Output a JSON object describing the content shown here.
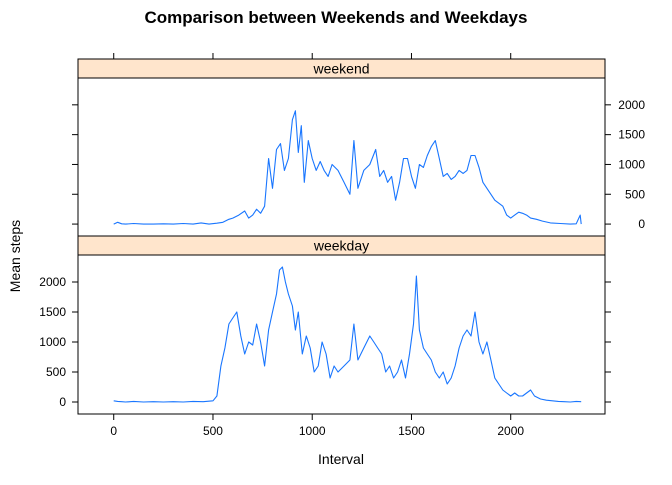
{
  "chart_data": {
    "type": "line",
    "title": "Comparison between Weekends and Weekdays",
    "xlabel": "Interval",
    "ylabel": "Mean steps",
    "xlim": [
      -180,
      2475
    ],
    "ylim": [
      -200,
      2450
    ],
    "x_ticks": [
      0,
      500,
      1000,
      1500,
      2000
    ],
    "y_ticks": [
      0,
      500,
      1000,
      1500,
      2000
    ],
    "panels": [
      {
        "name": "weekend",
        "strip_label": "weekend",
        "y_axis_side": "right",
        "points": [
          [
            0,
            0
          ],
          [
            20,
            30
          ],
          [
            40,
            5
          ],
          [
            60,
            0
          ],
          [
            100,
            10
          ],
          [
            150,
            0
          ],
          [
            200,
            0
          ],
          [
            250,
            5
          ],
          [
            300,
            0
          ],
          [
            350,
            10
          ],
          [
            400,
            0
          ],
          [
            440,
            20
          ],
          [
            480,
            0
          ],
          [
            520,
            15
          ],
          [
            550,
            30
          ],
          [
            580,
            80
          ],
          [
            600,
            100
          ],
          [
            630,
            150
          ],
          [
            660,
            220
          ],
          [
            680,
            100
          ],
          [
            700,
            150
          ],
          [
            720,
            250
          ],
          [
            740,
            180
          ],
          [
            760,
            300
          ],
          [
            780,
            1100
          ],
          [
            800,
            600
          ],
          [
            820,
            1250
          ],
          [
            840,
            1350
          ],
          [
            860,
            900
          ],
          [
            880,
            1100
          ],
          [
            900,
            1750
          ],
          [
            915,
            1900
          ],
          [
            930,
            1200
          ],
          [
            945,
            1650
          ],
          [
            960,
            700
          ],
          [
            980,
            1400
          ],
          [
            1000,
            1100
          ],
          [
            1020,
            900
          ],
          [
            1040,
            1050
          ],
          [
            1060,
            900
          ],
          [
            1080,
            800
          ],
          [
            1100,
            1000
          ],
          [
            1130,
            900
          ],
          [
            1160,
            700
          ],
          [
            1190,
            500
          ],
          [
            1210,
            1400
          ],
          [
            1230,
            600
          ],
          [
            1260,
            900
          ],
          [
            1290,
            1000
          ],
          [
            1320,
            1250
          ],
          [
            1340,
            800
          ],
          [
            1360,
            900
          ],
          [
            1380,
            700
          ],
          [
            1400,
            800
          ],
          [
            1420,
            400
          ],
          [
            1440,
            700
          ],
          [
            1460,
            1100
          ],
          [
            1480,
            1100
          ],
          [
            1500,
            800
          ],
          [
            1520,
            600
          ],
          [
            1540,
            1000
          ],
          [
            1560,
            950
          ],
          [
            1580,
            1150
          ],
          [
            1600,
            1300
          ],
          [
            1620,
            1400
          ],
          [
            1640,
            1100
          ],
          [
            1660,
            800
          ],
          [
            1680,
            850
          ],
          [
            1700,
            750
          ],
          [
            1720,
            800
          ],
          [
            1740,
            900
          ],
          [
            1760,
            850
          ],
          [
            1780,
            900
          ],
          [
            1800,
            1150
          ],
          [
            1820,
            1150
          ],
          [
            1840,
            950
          ],
          [
            1860,
            700
          ],
          [
            1880,
            600
          ],
          [
            1900,
            500
          ],
          [
            1920,
            400
          ],
          [
            1940,
            350
          ],
          [
            1960,
            300
          ],
          [
            1980,
            150
          ],
          [
            2000,
            100
          ],
          [
            2020,
            150
          ],
          [
            2040,
            200
          ],
          [
            2060,
            180
          ],
          [
            2080,
            150
          ],
          [
            2100,
            100
          ],
          [
            2130,
            80
          ],
          [
            2160,
            50
          ],
          [
            2200,
            20
          ],
          [
            2250,
            10
          ],
          [
            2300,
            0
          ],
          [
            2330,
            5
          ],
          [
            2350,
            150
          ],
          [
            2355,
            0
          ]
        ]
      },
      {
        "name": "weekday",
        "strip_label": "weekday",
        "y_axis_side": "left",
        "points": [
          [
            0,
            20
          ],
          [
            20,
            10
          ],
          [
            40,
            5
          ],
          [
            60,
            0
          ],
          [
            100,
            10
          ],
          [
            150,
            0
          ],
          [
            200,
            5
          ],
          [
            250,
            0
          ],
          [
            300,
            5
          ],
          [
            350,
            0
          ],
          [
            400,
            10
          ],
          [
            450,
            5
          ],
          [
            500,
            20
          ],
          [
            520,
            100
          ],
          [
            540,
            600
          ],
          [
            560,
            900
          ],
          [
            580,
            1300
          ],
          [
            600,
            1400
          ],
          [
            620,
            1500
          ],
          [
            640,
            1100
          ],
          [
            660,
            800
          ],
          [
            680,
            1000
          ],
          [
            700,
            950
          ],
          [
            720,
            1300
          ],
          [
            740,
            1000
          ],
          [
            760,
            600
          ],
          [
            780,
            1200
          ],
          [
            800,
            1500
          ],
          [
            820,
            1800
          ],
          [
            835,
            2200
          ],
          [
            850,
            2250
          ],
          [
            865,
            2000
          ],
          [
            880,
            1800
          ],
          [
            900,
            1600
          ],
          [
            915,
            1200
          ],
          [
            930,
            1500
          ],
          [
            950,
            800
          ],
          [
            970,
            1100
          ],
          [
            990,
            900
          ],
          [
            1010,
            500
          ],
          [
            1030,
            600
          ],
          [
            1050,
            1000
          ],
          [
            1070,
            800
          ],
          [
            1090,
            400
          ],
          [
            1110,
            600
          ],
          [
            1130,
            500
          ],
          [
            1160,
            600
          ],
          [
            1190,
            700
          ],
          [
            1210,
            1300
          ],
          [
            1230,
            700
          ],
          [
            1260,
            900
          ],
          [
            1290,
            1100
          ],
          [
            1310,
            1000
          ],
          [
            1330,
            900
          ],
          [
            1350,
            800
          ],
          [
            1370,
            500
          ],
          [
            1390,
            600
          ],
          [
            1410,
            400
          ],
          [
            1430,
            500
          ],
          [
            1450,
            700
          ],
          [
            1470,
            400
          ],
          [
            1490,
            800
          ],
          [
            1510,
            1300
          ],
          [
            1525,
            2100
          ],
          [
            1540,
            1200
          ],
          [
            1560,
            900
          ],
          [
            1580,
            800
          ],
          [
            1600,
            700
          ],
          [
            1620,
            500
          ],
          [
            1640,
            400
          ],
          [
            1660,
            500
          ],
          [
            1680,
            300
          ],
          [
            1700,
            400
          ],
          [
            1720,
            600
          ],
          [
            1740,
            900
          ],
          [
            1760,
            1100
          ],
          [
            1780,
            1200
          ],
          [
            1800,
            1100
          ],
          [
            1820,
            1500
          ],
          [
            1840,
            1000
          ],
          [
            1860,
            800
          ],
          [
            1880,
            1000
          ],
          [
            1900,
            700
          ],
          [
            1920,
            400
          ],
          [
            1940,
            300
          ],
          [
            1960,
            200
          ],
          [
            1980,
            150
          ],
          [
            2000,
            100
          ],
          [
            2020,
            150
          ],
          [
            2040,
            100
          ],
          [
            2060,
            100
          ],
          [
            2080,
            150
          ],
          [
            2100,
            200
          ],
          [
            2120,
            100
          ],
          [
            2150,
            50
          ],
          [
            2180,
            30
          ],
          [
            2210,
            20
          ],
          [
            2240,
            10
          ],
          [
            2270,
            5
          ],
          [
            2300,
            0
          ],
          [
            2330,
            10
          ],
          [
            2355,
            5
          ]
        ]
      }
    ]
  }
}
